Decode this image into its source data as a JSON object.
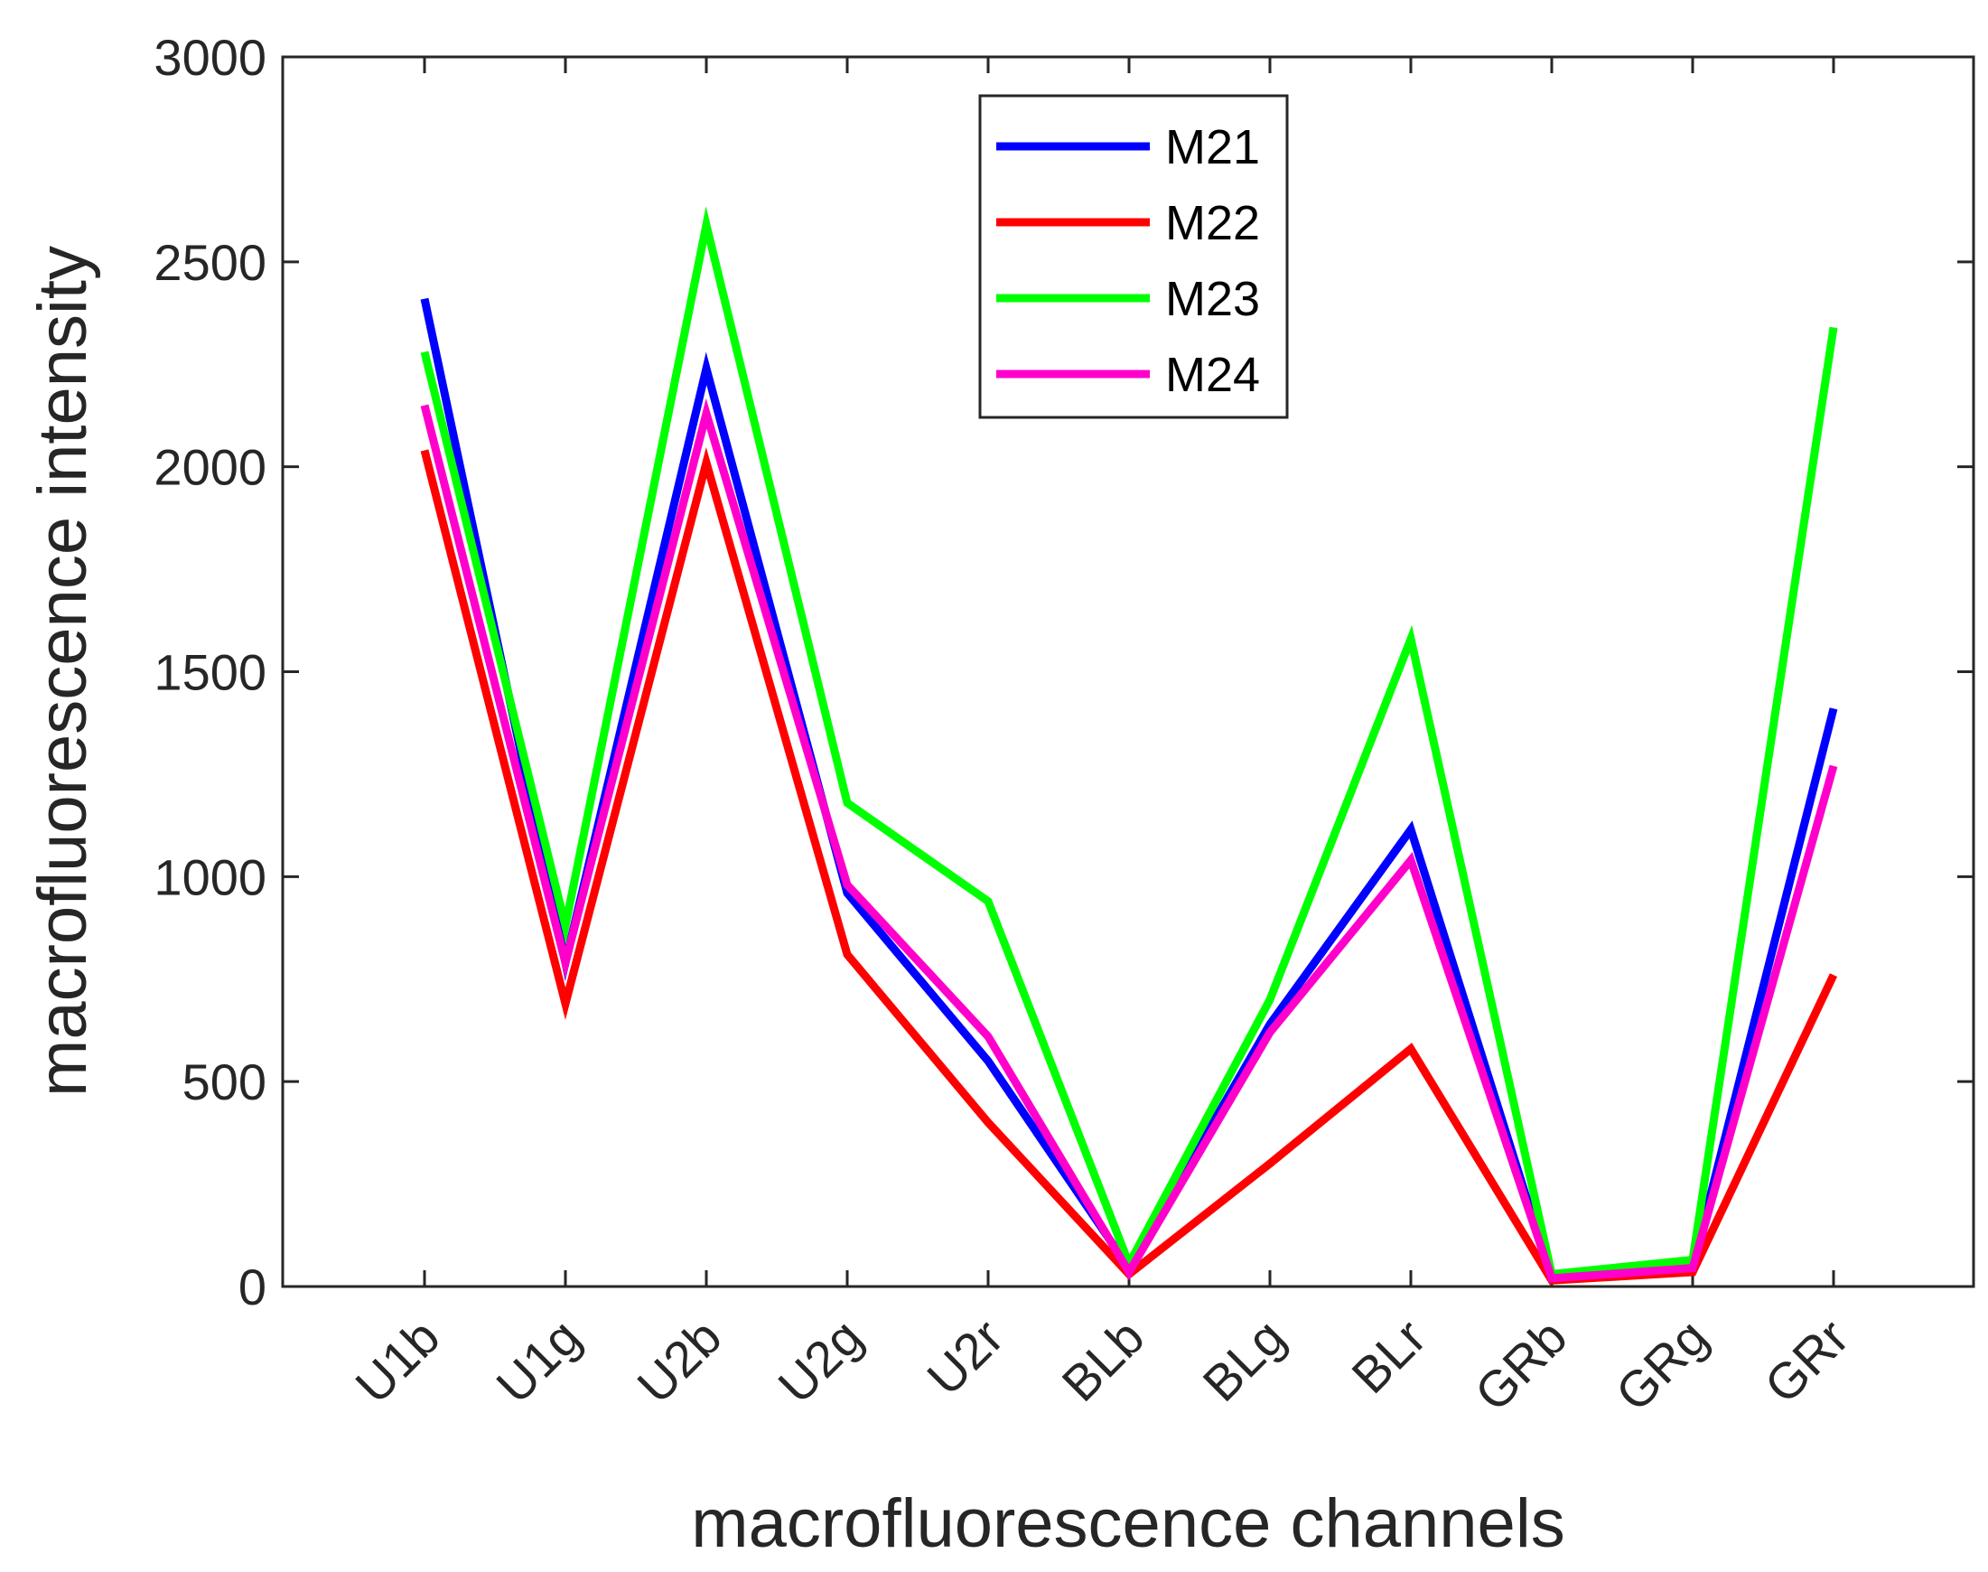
{
  "chart_data": {
    "type": "line",
    "xlabel": "macrofluorescence channels",
    "ylabel": "macrofluorescence intensity",
    "categories": [
      "U1b",
      "U1g",
      "U2b",
      "U2g",
      "U2r",
      "BLb",
      "BLg",
      "BLr",
      "GRb",
      "GRg",
      "GRr"
    ],
    "ylim": [
      0,
      3000
    ],
    "yticks": [
      "0",
      "500",
      "1000",
      "1500",
      "2000",
      "2500",
      "3000"
    ],
    "grid": false,
    "legend_position": "top-center",
    "series": [
      {
        "name": "M21",
        "color": "#0000ff",
        "values": [
          2410,
          790,
          2240,
          960,
          550,
          45,
          640,
          1115,
          20,
          50,
          1410
        ]
      },
      {
        "name": "M22",
        "color": "#ff0000",
        "values": [
          2040,
          690,
          2010,
          810,
          400,
          30,
          300,
          580,
          15,
          35,
          760
        ]
      },
      {
        "name": "M23",
        "color": "#00ff00",
        "values": [
          2280,
          880,
          2590,
          1180,
          940,
          55,
          700,
          1580,
          30,
          65,
          2340
        ]
      },
      {
        "name": "M24",
        "color": "#ff00cc",
        "values": [
          2150,
          790,
          2130,
          980,
          610,
          35,
          620,
          1040,
          20,
          45,
          1270
        ]
      }
    ]
  }
}
